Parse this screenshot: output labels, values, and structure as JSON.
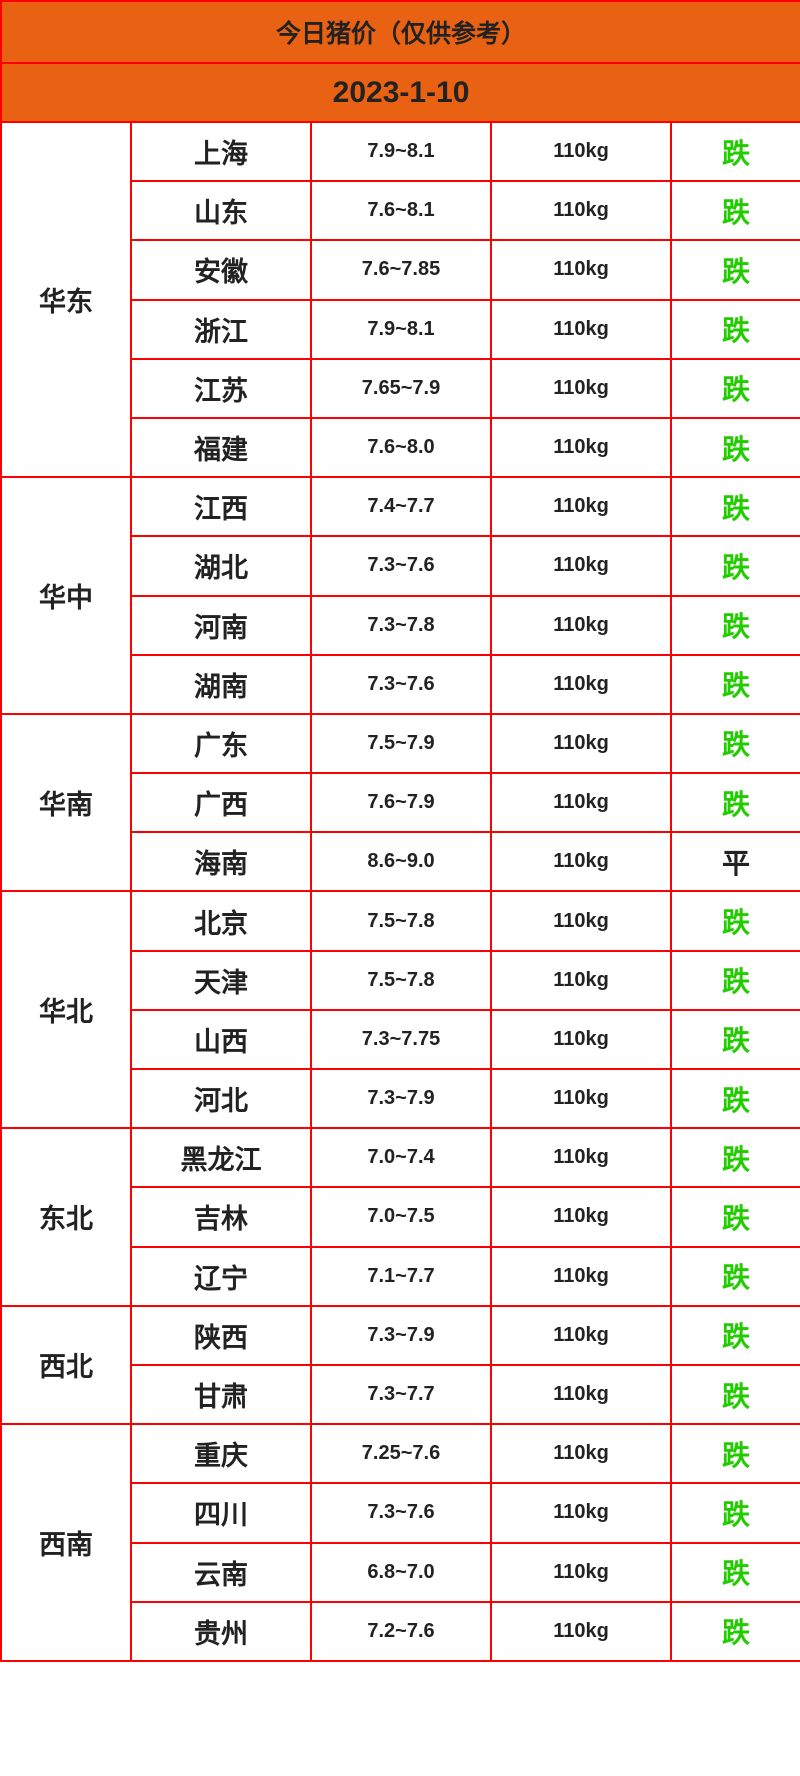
{
  "title": "今日猪价（仅供参考）",
  "date": "2023-1-10",
  "colors": {
    "header_bg": "#e96213",
    "border": "#ff0000",
    "down": "#22cc00",
    "flat": "#222222"
  },
  "regions": [
    {
      "name": "华东",
      "rows": [
        {
          "city": "上海",
          "price": "7.9~8.1",
          "weight": "110kg",
          "trend": "跌"
        },
        {
          "city": "山东",
          "price": "7.6~8.1",
          "weight": "110kg",
          "trend": "跌"
        },
        {
          "city": "安徽",
          "price": "7.6~7.85",
          "weight": "110kg",
          "trend": "跌"
        },
        {
          "city": "浙江",
          "price": "7.9~8.1",
          "weight": "110kg",
          "trend": "跌"
        },
        {
          "city": "江苏",
          "price": "7.65~7.9",
          "weight": "110kg",
          "trend": "跌"
        },
        {
          "city": "福建",
          "price": "7.6~8.0",
          "weight": "110kg",
          "trend": "跌"
        }
      ]
    },
    {
      "name": "华中",
      "rows": [
        {
          "city": "江西",
          "price": "7.4~7.7",
          "weight": "110kg",
          "trend": "跌"
        },
        {
          "city": "湖北",
          "price": "7.3~7.6",
          "weight": "110kg",
          "trend": "跌"
        },
        {
          "city": "河南",
          "price": "7.3~7.8",
          "weight": "110kg",
          "trend": "跌"
        },
        {
          "city": "湖南",
          "price": "7.3~7.6",
          "weight": "110kg",
          "trend": "跌"
        }
      ]
    },
    {
      "name": "华南",
      "rows": [
        {
          "city": "广东",
          "price": "7.5~7.9",
          "weight": "110kg",
          "trend": "跌"
        },
        {
          "city": "广西",
          "price": "7.6~7.9",
          "weight": "110kg",
          "trend": "跌"
        },
        {
          "city": "海南",
          "price": "8.6~9.0",
          "weight": "110kg",
          "trend": "平"
        }
      ]
    },
    {
      "name": "华北",
      "rows": [
        {
          "city": "北京",
          "price": "7.5~7.8",
          "weight": "110kg",
          "trend": "跌"
        },
        {
          "city": "天津",
          "price": "7.5~7.8",
          "weight": "110kg",
          "trend": "跌"
        },
        {
          "city": "山西",
          "price": "7.3~7.75",
          "weight": "110kg",
          "trend": "跌"
        },
        {
          "city": "河北",
          "price": "7.3~7.9",
          "weight": "110kg",
          "trend": "跌"
        }
      ]
    },
    {
      "name": "东北",
      "rows": [
        {
          "city": "黑龙江",
          "price": "7.0~7.4",
          "weight": "110kg",
          "trend": "跌"
        },
        {
          "city": "吉林",
          "price": "7.0~7.5",
          "weight": "110kg",
          "trend": "跌"
        },
        {
          "city": "辽宁",
          "price": "7.1~7.7",
          "weight": "110kg",
          "trend": "跌"
        }
      ]
    },
    {
      "name": "西北",
      "rows": [
        {
          "city": "陕西",
          "price": "7.3~7.9",
          "weight": "110kg",
          "trend": "跌"
        },
        {
          "city": "甘肃",
          "price": "7.3~7.7",
          "weight": "110kg",
          "trend": "跌"
        }
      ]
    },
    {
      "name": "西南",
      "rows": [
        {
          "city": "重庆",
          "price": "7.25~7.6",
          "weight": "110kg",
          "trend": "跌"
        },
        {
          "city": "四川",
          "price": "7.3~7.6",
          "weight": "110kg",
          "trend": "跌"
        },
        {
          "city": "云南",
          "price": "6.8~7.0",
          "weight": "110kg",
          "trend": "跌"
        },
        {
          "city": "贵州",
          "price": "7.2~7.6",
          "weight": "110kg",
          "trend": "跌"
        }
      ]
    }
  ]
}
